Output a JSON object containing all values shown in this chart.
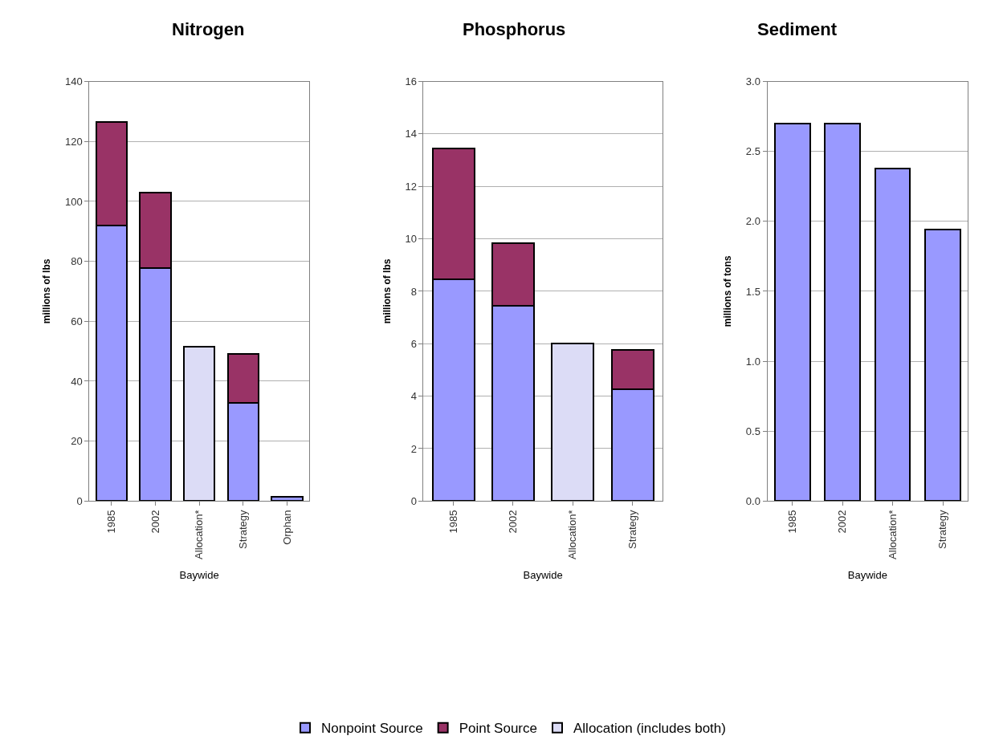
{
  "chart_data": [
    {
      "type": "bar",
      "title": "Nitrogen",
      "ylabel": "millions of lbs",
      "xlabel": "Baywide",
      "stacked": true,
      "grid": "y",
      "legend": "bottom",
      "categories": [
        "1985",
        "2002",
        "Allocation*",
        "Strategy",
        "Orphan"
      ],
      "ylim": [
        0,
        140
      ],
      "yticks": [
        0,
        20,
        40,
        60,
        80,
        100,
        120,
        140
      ],
      "series": [
        {
          "name": "Nonpoint Source",
          "color": "#9999ff",
          "values": [
            92,
            77.8,
            null,
            32.7,
            1.5
          ]
        },
        {
          "name": "Point Source",
          "color": "#993366",
          "values": [
            34.5,
            25.2,
            null,
            16.5,
            null
          ]
        },
        {
          "name": "Allocation (includes both)",
          "color": "#dcdcf6",
          "values": [
            null,
            null,
            51.5,
            null,
            null
          ]
        }
      ]
    },
    {
      "type": "bar",
      "title": "Phosphorus",
      "ylabel": "millions of lbs",
      "xlabel": "Baywide",
      "stacked": true,
      "grid": "y",
      "categories": [
        "1985",
        "2002",
        "Allocation*",
        "Strategy"
      ],
      "ylim": [
        0,
        16
      ],
      "yticks": [
        0,
        2,
        4,
        6,
        8,
        10,
        12,
        14,
        16
      ],
      "series": [
        {
          "color": "#9999ff",
          "values": [
            8.45,
            7.45,
            null,
            4.25
          ]
        },
        {
          "color": "#993366",
          "values": [
            5.0,
            2.4,
            null,
            1.5
          ]
        },
        {
          "color": "#dcdcf6",
          "values": [
            null,
            null,
            6.0,
            null
          ]
        }
      ]
    },
    {
      "type": "bar",
      "title": "Sediment",
      "ylabel": "millions of tons",
      "xlabel": "Baywide",
      "grid": "y",
      "categories": [
        "1985",
        "2002",
        "Allocation*",
        "Strategy"
      ],
      "ylim": [
        0,
        3
      ],
      "yticks": [
        {
          "value": 0,
          "label": "0.0"
        },
        {
          "value": 0.5,
          "label": "0.5"
        },
        {
          "value": 1,
          "label": "1.0"
        },
        {
          "value": 1.5,
          "label": "1.5"
        },
        {
          "value": 2,
          "label": "2.0"
        },
        {
          "value": 2.5,
          "label": "2.5"
        },
        {
          "value": 3,
          "label": "3.0"
        }
      ],
      "series": [
        {
          "color": "#9999ff",
          "values": [
            2.7,
            2.7,
            2.38,
            1.94
          ]
        }
      ]
    }
  ]
}
